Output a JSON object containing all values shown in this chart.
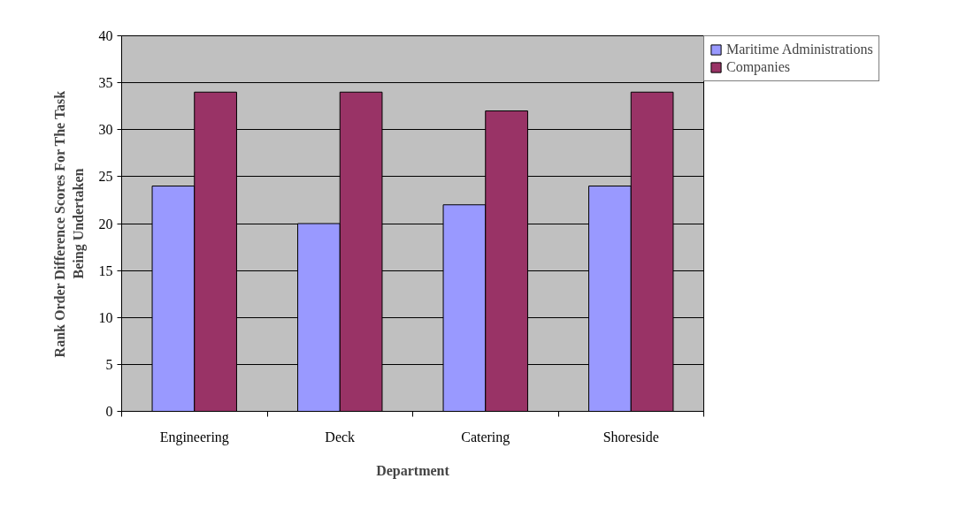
{
  "chart_data": {
    "type": "bar",
    "xlabel": "Department",
    "ylabel": "Rank Order Difference Scores For The Task Being Undertaken",
    "categories": [
      "Engineering",
      "Deck",
      "Catering",
      "Shoreside"
    ],
    "series": [
      {
        "name": "Maritime Administrations",
        "color": "#9999ff",
        "values": [
          24,
          20,
          22,
          24
        ]
      },
      {
        "name": "Companies",
        "color": "#993366",
        "values": [
          34,
          34,
          32,
          34
        ]
      }
    ],
    "ylim": [
      0,
      40
    ],
    "yticks": [
      0,
      5,
      10,
      15,
      20,
      25,
      30,
      35,
      40
    ],
    "grid": "y",
    "legend": "right"
  }
}
